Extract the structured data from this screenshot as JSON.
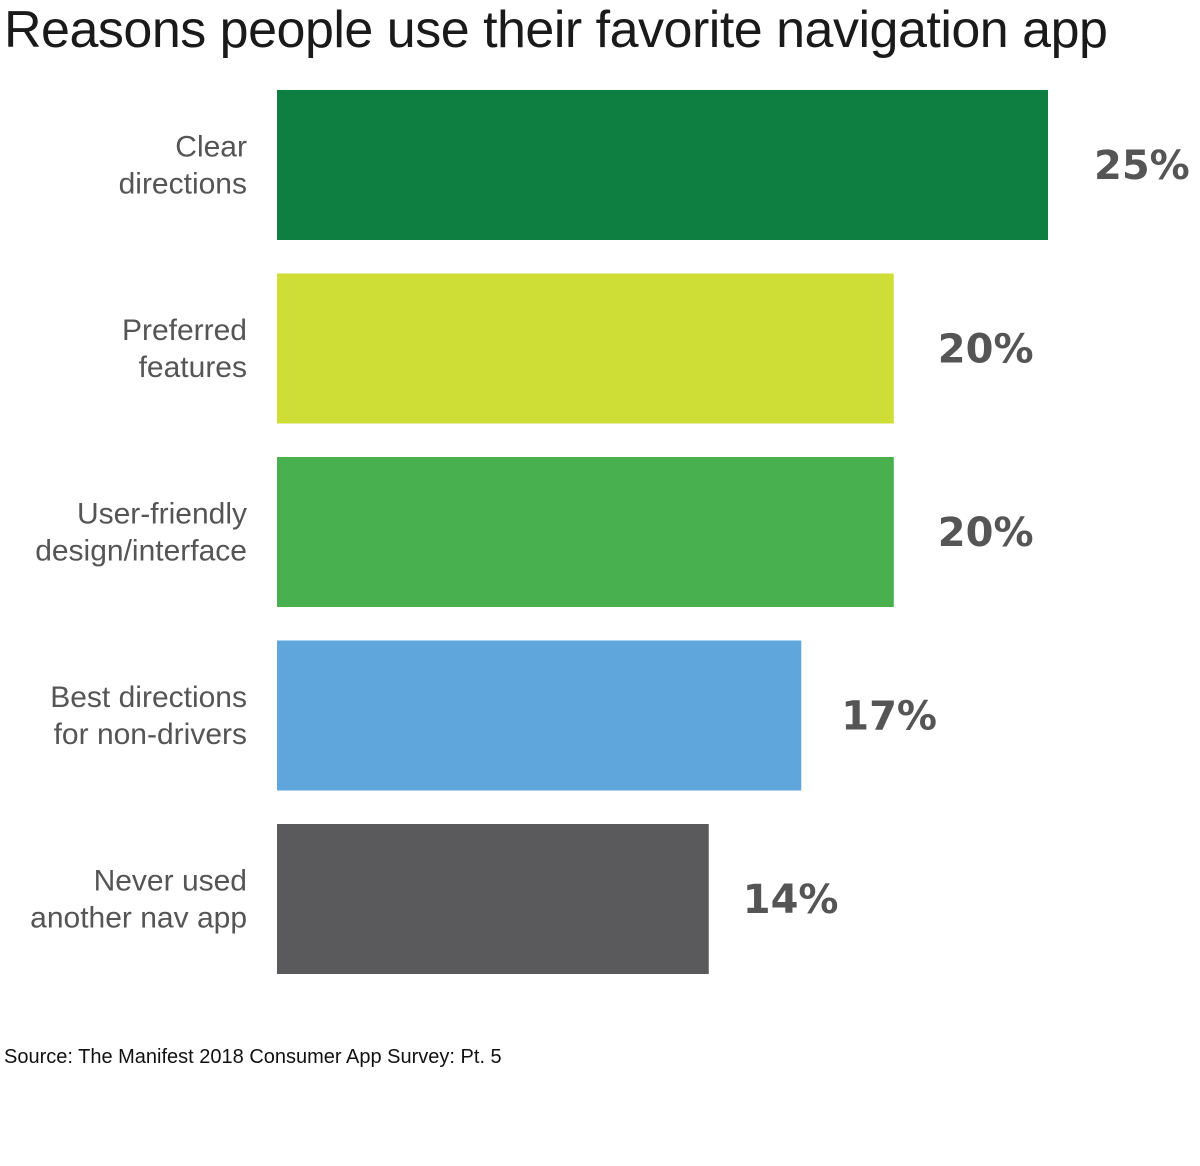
{
  "chart_data": {
    "type": "bar",
    "orientation": "horizontal",
    "title": "Reasons people use their favorite navigation app",
    "categories": [
      [
        "Clear",
        "directions"
      ],
      [
        "Preferred",
        "features"
      ],
      [
        "User-friendly",
        "design/interface"
      ],
      [
        "Best directions",
        "for non-drivers"
      ],
      [
        "Never used",
        "another nav app"
      ]
    ],
    "values": [
      25,
      20,
      20,
      17,
      14
    ],
    "value_labels": [
      "25%",
      "20%",
      "20%",
      "17%",
      "14%"
    ],
    "colors": [
      "#0e7e41",
      "#cfdd37",
      "#49b04f",
      "#5ea6db",
      "#5a5a5c"
    ],
    "xlim": [
      0,
      25
    ],
    "grid": false,
    "legend": "none",
    "xlabel": "",
    "ylabel": ""
  },
  "source": "Source: The Manifest 2018 Consumer App Survey: Pt. 5"
}
